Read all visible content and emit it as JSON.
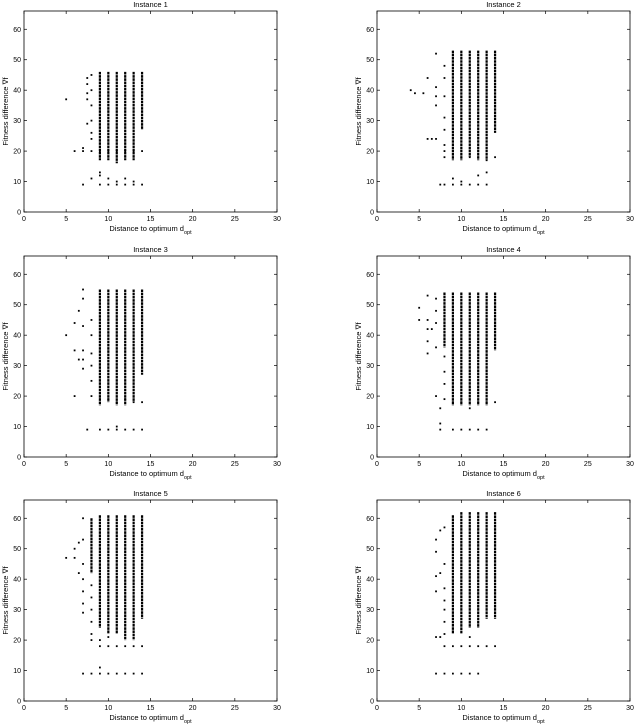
{
  "chart_data": [
    {
      "type": "scatter",
      "title": "Instance 1",
      "xlabel": "Distance to optimum d",
      "xlabel_sub": "opt",
      "ylabel": "Fitness difference ∇f",
      "xlim": [
        0,
        30
      ],
      "ylim": [
        0,
        66
      ],
      "xticks": [
        0,
        5,
        10,
        15,
        20,
        25,
        30
      ],
      "yticks": [
        0,
        10,
        20,
        30,
        40,
        50,
        60
      ],
      "points": [
        [
          5,
          37
        ],
        [
          6,
          20
        ],
        [
          7,
          20
        ],
        [
          7,
          21
        ],
        [
          7,
          9
        ],
        [
          7.5,
          29
        ],
        [
          7.5,
          37
        ],
        [
          7.5,
          39
        ],
        [
          7.5,
          42
        ],
        [
          7.5,
          44
        ],
        [
          8,
          11
        ],
        [
          8,
          20
        ],
        [
          8,
          24
        ],
        [
          8,
          26
        ],
        [
          8,
          30
        ],
        [
          8,
          35
        ],
        [
          8,
          40
        ],
        [
          8,
          45
        ],
        [
          9,
          9
        ],
        [
          9,
          12
        ],
        [
          9,
          13
        ],
        [
          10,
          9
        ],
        [
          10,
          11
        ],
        [
          11,
          9
        ],
        [
          11,
          10
        ],
        [
          12,
          9
        ],
        [
          12,
          11
        ],
        [
          13,
          9
        ],
        [
          13,
          10
        ],
        [
          14,
          9
        ],
        [
          9,
          20
        ],
        [
          10,
          20
        ],
        [
          11,
          20
        ],
        [
          12,
          20
        ],
        [
          13,
          20
        ],
        [
          14,
          20
        ]
      ],
      "columns": [
        {
          "x": 9,
          "min": 17,
          "max": 46
        },
        {
          "x": 10,
          "min": 17,
          "max": 46
        },
        {
          "x": 11,
          "min": 16,
          "max": 46
        },
        {
          "x": 12,
          "min": 17,
          "max": 46
        },
        {
          "x": 13,
          "min": 17,
          "max": 46
        },
        {
          "x": 14,
          "min": 27,
          "max": 46
        }
      ]
    },
    {
      "type": "scatter",
      "title": "Instance 2",
      "xlabel": "Distance to optimum d",
      "xlabel_sub": "opt",
      "ylabel": "Fitness difference ∇f",
      "xlim": [
        0,
        30
      ],
      "ylim": [
        0,
        66
      ],
      "xticks": [
        0,
        5,
        10,
        15,
        20,
        25,
        30
      ],
      "yticks": [
        0,
        10,
        20,
        30,
        40,
        50,
        60
      ],
      "points": [
        [
          4,
          40
        ],
        [
          4.5,
          39
        ],
        [
          5.5,
          39
        ],
        [
          6,
          24
        ],
        [
          6,
          44
        ],
        [
          6.5,
          24
        ],
        [
          7,
          24
        ],
        [
          7,
          35
        ],
        [
          7,
          38
        ],
        [
          7,
          41
        ],
        [
          7,
          52
        ],
        [
          7.5,
          9
        ],
        [
          8,
          9
        ],
        [
          8,
          18
        ],
        [
          8,
          20
        ],
        [
          8,
          22
        ],
        [
          8,
          27
        ],
        [
          8,
          31
        ],
        [
          8,
          38
        ],
        [
          8,
          44
        ],
        [
          8,
          48
        ],
        [
          9,
          9
        ],
        [
          9,
          11
        ],
        [
          10,
          9
        ],
        [
          10,
          10
        ],
        [
          11,
          9
        ],
        [
          12,
          9
        ],
        [
          12,
          12
        ],
        [
          13,
          9
        ],
        [
          13,
          13
        ],
        [
          9,
          18
        ],
        [
          10,
          18
        ],
        [
          11,
          18
        ],
        [
          12,
          18
        ],
        [
          13,
          17
        ],
        [
          14,
          18
        ]
      ],
      "columns": [
        {
          "x": 9,
          "min": 17,
          "max": 53
        },
        {
          "x": 10,
          "min": 17,
          "max": 53
        },
        {
          "x": 11,
          "min": 18,
          "max": 53
        },
        {
          "x": 12,
          "min": 17,
          "max": 53
        },
        {
          "x": 13,
          "min": 17,
          "max": 53
        },
        {
          "x": 14,
          "min": 26,
          "max": 53
        }
      ]
    },
    {
      "type": "scatter",
      "title": "Instance 3",
      "xlabel": "Distance to optimum d",
      "xlabel_sub": "opt",
      "ylabel": "Fitness difference ∇f",
      "xlim": [
        0,
        30
      ],
      "ylim": [
        0,
        66
      ],
      "xticks": [
        0,
        5,
        10,
        15,
        20,
        25,
        30
      ],
      "yticks": [
        0,
        10,
        20,
        30,
        40,
        50,
        60
      ],
      "points": [
        [
          5,
          40
        ],
        [
          6,
          20
        ],
        [
          6,
          35
        ],
        [
          6,
          44
        ],
        [
          6.5,
          32
        ],
        [
          6.5,
          48
        ],
        [
          7,
          29
        ],
        [
          7,
          32
        ],
        [
          7,
          35
        ],
        [
          7,
          43
        ],
        [
          7,
          52
        ],
        [
          7,
          55
        ],
        [
          7.5,
          9
        ],
        [
          8,
          20
        ],
        [
          8,
          25
        ],
        [
          8,
          30
        ],
        [
          8,
          34
        ],
        [
          8,
          40
        ],
        [
          8,
          45
        ],
        [
          9,
          9
        ],
        [
          10,
          9
        ],
        [
          11,
          9
        ],
        [
          11,
          10
        ],
        [
          12,
          9
        ],
        [
          13,
          9
        ],
        [
          14,
          9
        ],
        [
          9,
          19
        ],
        [
          10,
          19
        ],
        [
          11,
          18
        ],
        [
          12,
          19
        ],
        [
          13,
          18
        ],
        [
          14,
          18
        ]
      ],
      "columns": [
        {
          "x": 9,
          "min": 17,
          "max": 55
        },
        {
          "x": 10,
          "min": 18,
          "max": 55
        },
        {
          "x": 11,
          "min": 17,
          "max": 55
        },
        {
          "x": 12,
          "min": 17,
          "max": 55
        },
        {
          "x": 13,
          "min": 18,
          "max": 55
        },
        {
          "x": 14,
          "min": 27,
          "max": 55
        }
      ]
    },
    {
      "type": "scatter",
      "title": "Instance 4",
      "xlabel": "Distance to optimum d",
      "xlabel_sub": "opt",
      "ylabel": "Fitness difference ∇f",
      "xlim": [
        0,
        30
      ],
      "ylim": [
        0,
        66
      ],
      "xticks": [
        0,
        5,
        10,
        15,
        20,
        25,
        30
      ],
      "yticks": [
        0,
        10,
        20,
        30,
        40,
        50,
        60
      ],
      "points": [
        [
          5,
          45
        ],
        [
          5,
          49
        ],
        [
          6,
          34
        ],
        [
          6,
          38
        ],
        [
          6,
          42
        ],
        [
          6,
          45
        ],
        [
          6,
          53
        ],
        [
          6.5,
          42
        ],
        [
          7,
          36
        ],
        [
          7,
          44
        ],
        [
          7,
          48
        ],
        [
          7,
          52
        ],
        [
          7,
          20
        ],
        [
          7.5,
          9
        ],
        [
          7.5,
          11
        ],
        [
          7.5,
          16
        ],
        [
          8,
          19
        ],
        [
          8,
          24
        ],
        [
          8,
          28
        ],
        [
          8,
          33
        ],
        [
          9,
          9
        ],
        [
          10,
          9
        ],
        [
          11,
          9
        ],
        [
          12,
          9
        ],
        [
          13,
          9
        ],
        [
          9,
          18
        ],
        [
          10,
          18
        ],
        [
          11,
          16
        ],
        [
          12,
          18
        ],
        [
          13,
          18
        ],
        [
          14,
          18
        ]
      ],
      "columns": [
        {
          "x": 8,
          "min": 36,
          "max": 54
        },
        {
          "x": 9,
          "min": 17,
          "max": 54
        },
        {
          "x": 10,
          "min": 17,
          "max": 54
        },
        {
          "x": 11,
          "min": 17,
          "max": 54
        },
        {
          "x": 12,
          "min": 17,
          "max": 54
        },
        {
          "x": 13,
          "min": 17,
          "max": 54
        },
        {
          "x": 14,
          "min": 35,
          "max": 54
        }
      ]
    },
    {
      "type": "scatter",
      "title": "Instance 5",
      "xlabel": "Distance to optimum d",
      "xlabel_sub": "opt",
      "ylabel": "Fitness difference ∇f",
      "xlim": [
        0,
        30
      ],
      "ylim": [
        0,
        66
      ],
      "xticks": [
        0,
        5,
        10,
        15,
        20,
        25,
        30
      ],
      "yticks": [
        0,
        10,
        20,
        30,
        40,
        50,
        60
      ],
      "points": [
        [
          5,
          47
        ],
        [
          6,
          47
        ],
        [
          6,
          50
        ],
        [
          6.5,
          42
        ],
        [
          6.5,
          52
        ],
        [
          7,
          9
        ],
        [
          7,
          29
        ],
        [
          7,
          32
        ],
        [
          7,
          36
        ],
        [
          7,
          40
        ],
        [
          7,
          45
        ],
        [
          7,
          53
        ],
        [
          7,
          60
        ],
        [
          8,
          9
        ],
        [
          8,
          20
        ],
        [
          8,
          22
        ],
        [
          8,
          26
        ],
        [
          8,
          30
        ],
        [
          8,
          34
        ],
        [
          8,
          38
        ],
        [
          9,
          9
        ],
        [
          9,
          11
        ],
        [
          10,
          9
        ],
        [
          11,
          9
        ],
        [
          12,
          9
        ],
        [
          13,
          9
        ],
        [
          14,
          9
        ],
        [
          9,
          18
        ],
        [
          10,
          18
        ],
        [
          11,
          18
        ],
        [
          12,
          18
        ],
        [
          13,
          18
        ],
        [
          14,
          18
        ],
        [
          9,
          20
        ],
        [
          10,
          21
        ]
      ],
      "columns": [
        {
          "x": 8,
          "min": 42,
          "max": 60
        },
        {
          "x": 9,
          "min": 24,
          "max": 61
        },
        {
          "x": 10,
          "min": 22,
          "max": 61
        },
        {
          "x": 11,
          "min": 22,
          "max": 61
        },
        {
          "x": 12,
          "min": 20,
          "max": 61
        },
        {
          "x": 13,
          "min": 20,
          "max": 61
        },
        {
          "x": 14,
          "min": 27,
          "max": 61
        }
      ]
    },
    {
      "type": "scatter",
      "title": "Instance 6",
      "xlabel": "Distance to optimum d",
      "xlabel_sub": "opt",
      "ylabel": "Fitness difference ∇f",
      "xlim": [
        0,
        30
      ],
      "ylim": [
        0,
        66
      ],
      "xticks": [
        0,
        5,
        10,
        15,
        20,
        25,
        30
      ],
      "yticks": [
        0,
        10,
        20,
        30,
        40,
        50,
        60
      ],
      "points": [
        [
          7,
          9
        ],
        [
          7,
          21
        ],
        [
          7,
          36
        ],
        [
          7,
          41
        ],
        [
          7,
          49
        ],
        [
          7,
          53
        ],
        [
          7.5,
          21
        ],
        [
          7.5,
          42
        ],
        [
          7.5,
          56
        ],
        [
          8,
          9
        ],
        [
          8,
          18
        ],
        [
          8,
          22
        ],
        [
          8,
          26
        ],
        [
          8,
          30
        ],
        [
          8,
          33
        ],
        [
          8,
          37
        ],
        [
          8,
          45
        ],
        [
          8,
          57
        ],
        [
          9,
          9
        ],
        [
          10,
          9
        ],
        [
          11,
          9
        ],
        [
          12,
          9
        ],
        [
          9,
          18
        ],
        [
          10,
          18
        ],
        [
          11,
          18
        ],
        [
          12,
          18
        ],
        [
          13,
          18
        ],
        [
          14,
          18
        ],
        [
          11,
          21
        ]
      ],
      "columns": [
        {
          "x": 9,
          "min": 22,
          "max": 61
        },
        {
          "x": 10,
          "min": 22,
          "max": 62
        },
        {
          "x": 11,
          "min": 24,
          "max": 62
        },
        {
          "x": 12,
          "min": 24,
          "max": 62
        },
        {
          "x": 13,
          "min": 27,
          "max": 62
        },
        {
          "x": 14,
          "min": 27,
          "max": 62
        }
      ]
    }
  ]
}
